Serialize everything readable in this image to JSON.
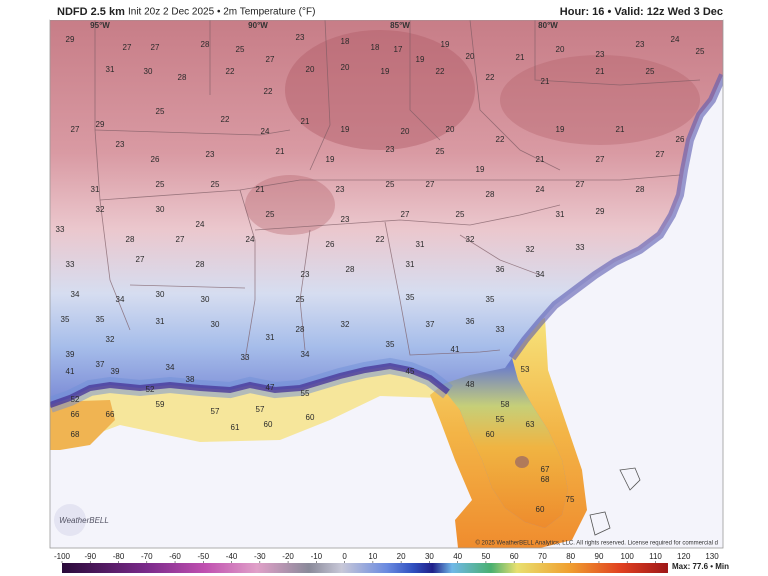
{
  "header": {
    "title": "NDFD 2.5 km",
    "subtitle": "Init 20z 2 Dec 2025 • 2m Temperature (°F)",
    "valid": "Hour: 16 • Valid: 12z Wed 3 Dec"
  },
  "map": {
    "longitude_labels": [
      "95°W",
      "90°W",
      "85°W",
      "80°W"
    ],
    "station_temps": [
      29,
      27,
      27,
      28,
      25,
      23,
      27,
      18,
      18,
      17,
      19,
      19,
      20,
      21,
      20,
      23,
      23,
      24,
      25,
      31,
      30,
      28,
      22,
      22,
      20,
      20,
      19,
      22,
      22,
      21,
      21,
      25,
      27,
      29,
      25,
      22,
      24,
      21,
      19,
      20,
      20,
      22,
      19,
      21,
      26,
      23,
      26,
      23,
      21,
      19,
      23,
      25,
      19,
      21,
      27,
      27,
      31,
      25,
      25,
      21,
      23,
      25,
      27,
      28,
      24,
      27,
      28,
      32,
      30,
      24,
      25,
      23,
      27,
      25,
      31,
      29,
      33,
      28,
      27,
      24,
      26,
      22,
      31,
      32,
      32,
      33,
      33,
      27,
      28,
      23,
      28,
      31,
      36,
      34,
      34,
      34,
      30,
      30,
      25,
      35,
      35,
      35,
      35,
      31,
      30,
      28,
      32,
      37,
      36,
      33,
      32,
      31,
      35,
      41,
      39,
      37,
      34,
      33,
      34,
      53,
      41,
      39,
      38,
      47,
      55,
      45,
      48,
      52,
      52,
      66,
      66,
      59,
      57,
      57,
      60,
      61,
      60,
      68,
      58,
      55,
      63,
      60,
      67,
      68,
      75,
      60
    ]
  },
  "colorbar": {
    "ticks": [
      -100,
      -90,
      -80,
      -70,
      -60,
      -50,
      -40,
      -30,
      -20,
      -10,
      0,
      10,
      20,
      30,
      40,
      50,
      60,
      70,
      80,
      90,
      100,
      110,
      120,
      130
    ]
  },
  "footer": {
    "copyright": "© 2025 WeatherBELL Analytics, LLC. All rights reserved. License required for commercial d",
    "logo": "WeatherBELL",
    "stats": "Max: 77.6 • Min"
  }
}
